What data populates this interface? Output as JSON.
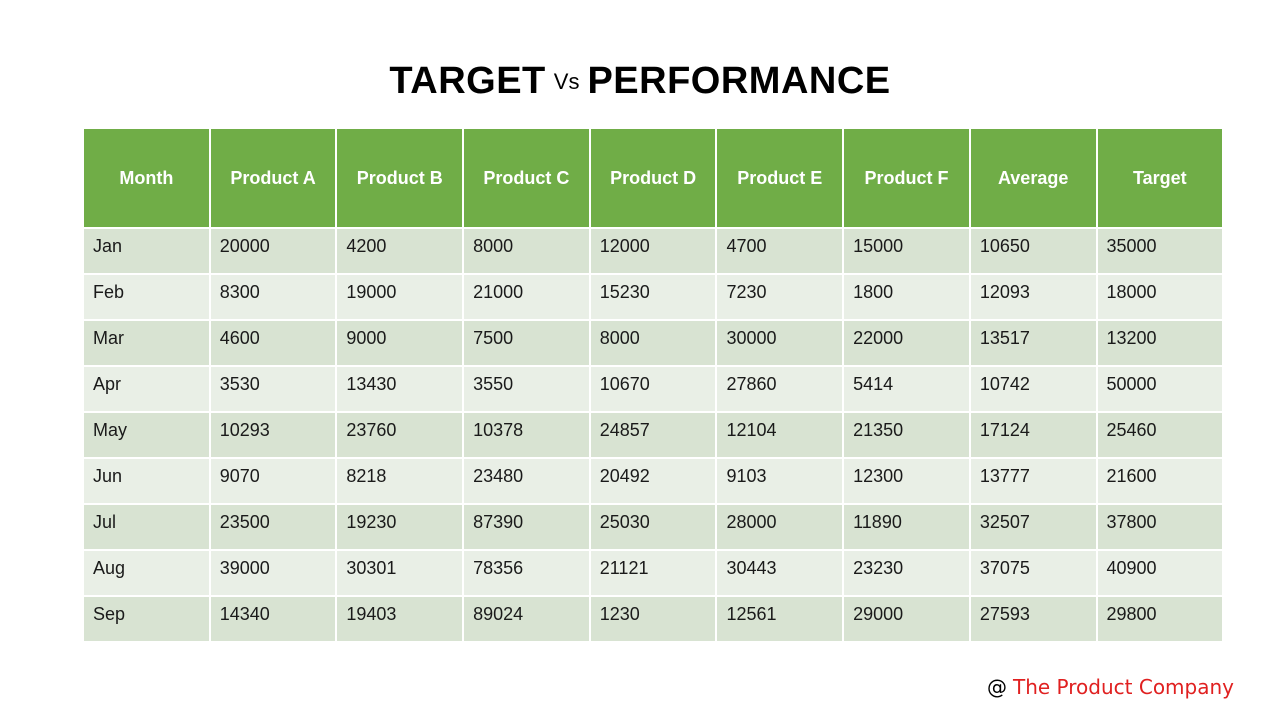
{
  "title": {
    "part1": "TARGET",
    "vs": "Vs",
    "part2": "PERFORMANCE"
  },
  "colors": {
    "header_bg": "#70ad47",
    "row_odd_bg": "#d8e3d2",
    "row_even_bg": "#e9efe6",
    "company_text": "#e02020"
  },
  "table": {
    "headers": [
      "Month",
      "Product A",
      "Product B",
      "Product C",
      "Product D",
      "Product E",
      "Product F",
      "Average",
      "Target"
    ],
    "rows": [
      [
        "Jan",
        "20000",
        "4200",
        "8000",
        "12000",
        "4700",
        "15000",
        "10650",
        "35000"
      ],
      [
        "Feb",
        "8300",
        "19000",
        "21000",
        "15230",
        "7230",
        "1800",
        "12093",
        "18000"
      ],
      [
        "Mar",
        "4600",
        "9000",
        "7500",
        "8000",
        "30000",
        "22000",
        "13517",
        "13200"
      ],
      [
        "Apr",
        "3530",
        "13430",
        "3550",
        "10670",
        "27860",
        "5414",
        "10742",
        "50000"
      ],
      [
        "May",
        "10293",
        "23760",
        "10378",
        "24857",
        "12104",
        "21350",
        "17124",
        "25460"
      ],
      [
        "Jun",
        "9070",
        "8218",
        "23480",
        "20492",
        "9103",
        "12300",
        "13777",
        "21600"
      ],
      [
        "Jul",
        "23500",
        "19230",
        "87390",
        "25030",
        "28000",
        "11890",
        "32507",
        "37800"
      ],
      [
        "Aug",
        "39000",
        "30301",
        "78356",
        "21121",
        "30443",
        "23230",
        "37075",
        "40900"
      ],
      [
        "Sep",
        "14340",
        "19403",
        "89024",
        "1230",
        "12561",
        "29000",
        "27593",
        "29800"
      ]
    ]
  },
  "footer": {
    "at": "@",
    "company": "The Product Company"
  }
}
